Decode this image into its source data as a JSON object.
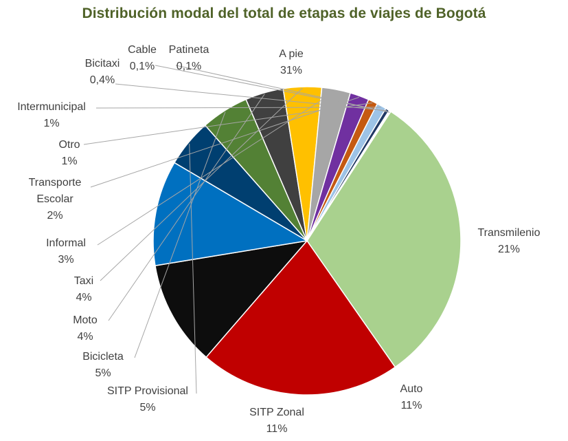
{
  "chart_data": {
    "type": "pie",
    "title": "Distribución modal del total de etapas de viajes de Bogotá",
    "slices": [
      {
        "name": "A pie",
        "value": 31,
        "label": "31%",
        "color": "#a9d18e"
      },
      {
        "name": "Transmilenio",
        "value": 21,
        "label": "21%",
        "color": "#c00000"
      },
      {
        "name": "Auto",
        "value": 11,
        "label": "11%",
        "color": "#0d0d0d"
      },
      {
        "name": "SITP Zonal",
        "value": 11,
        "label": "11%",
        "color": "#0070c0"
      },
      {
        "name": "SITP Provisional",
        "value": 5,
        "label": "5%",
        "color": "#003f70"
      },
      {
        "name": "Bicicleta",
        "value": 5,
        "label": "5%",
        "color": "#538135"
      },
      {
        "name": "Moto",
        "value": 4,
        "label": "4%",
        "color": "#404040"
      },
      {
        "name": "Taxi",
        "value": 4,
        "label": "4%",
        "color": "#ffc000"
      },
      {
        "name": "Informal",
        "value": 3,
        "label": "3%",
        "color": "#a6a6a6"
      },
      {
        "name": "Transporte Escolar",
        "value": 2,
        "label": "2%",
        "color": "#7030a0"
      },
      {
        "name": "Otro",
        "value": 1,
        "label": "1%",
        "color": "#c55a11"
      },
      {
        "name": "Intermunicipal",
        "value": 1,
        "label": "1%",
        "color": "#9dc3e6"
      },
      {
        "name": "Bicitaxi",
        "value": 0.4,
        "label": "0,4%",
        "color": "#203864"
      },
      {
        "name": "Cable",
        "value": 0.1,
        "label": "0,1%",
        "color": "#548235"
      },
      {
        "name": "Patineta",
        "value": 0.1,
        "label": "0,1%",
        "color": "#2e75b6"
      }
    ]
  }
}
